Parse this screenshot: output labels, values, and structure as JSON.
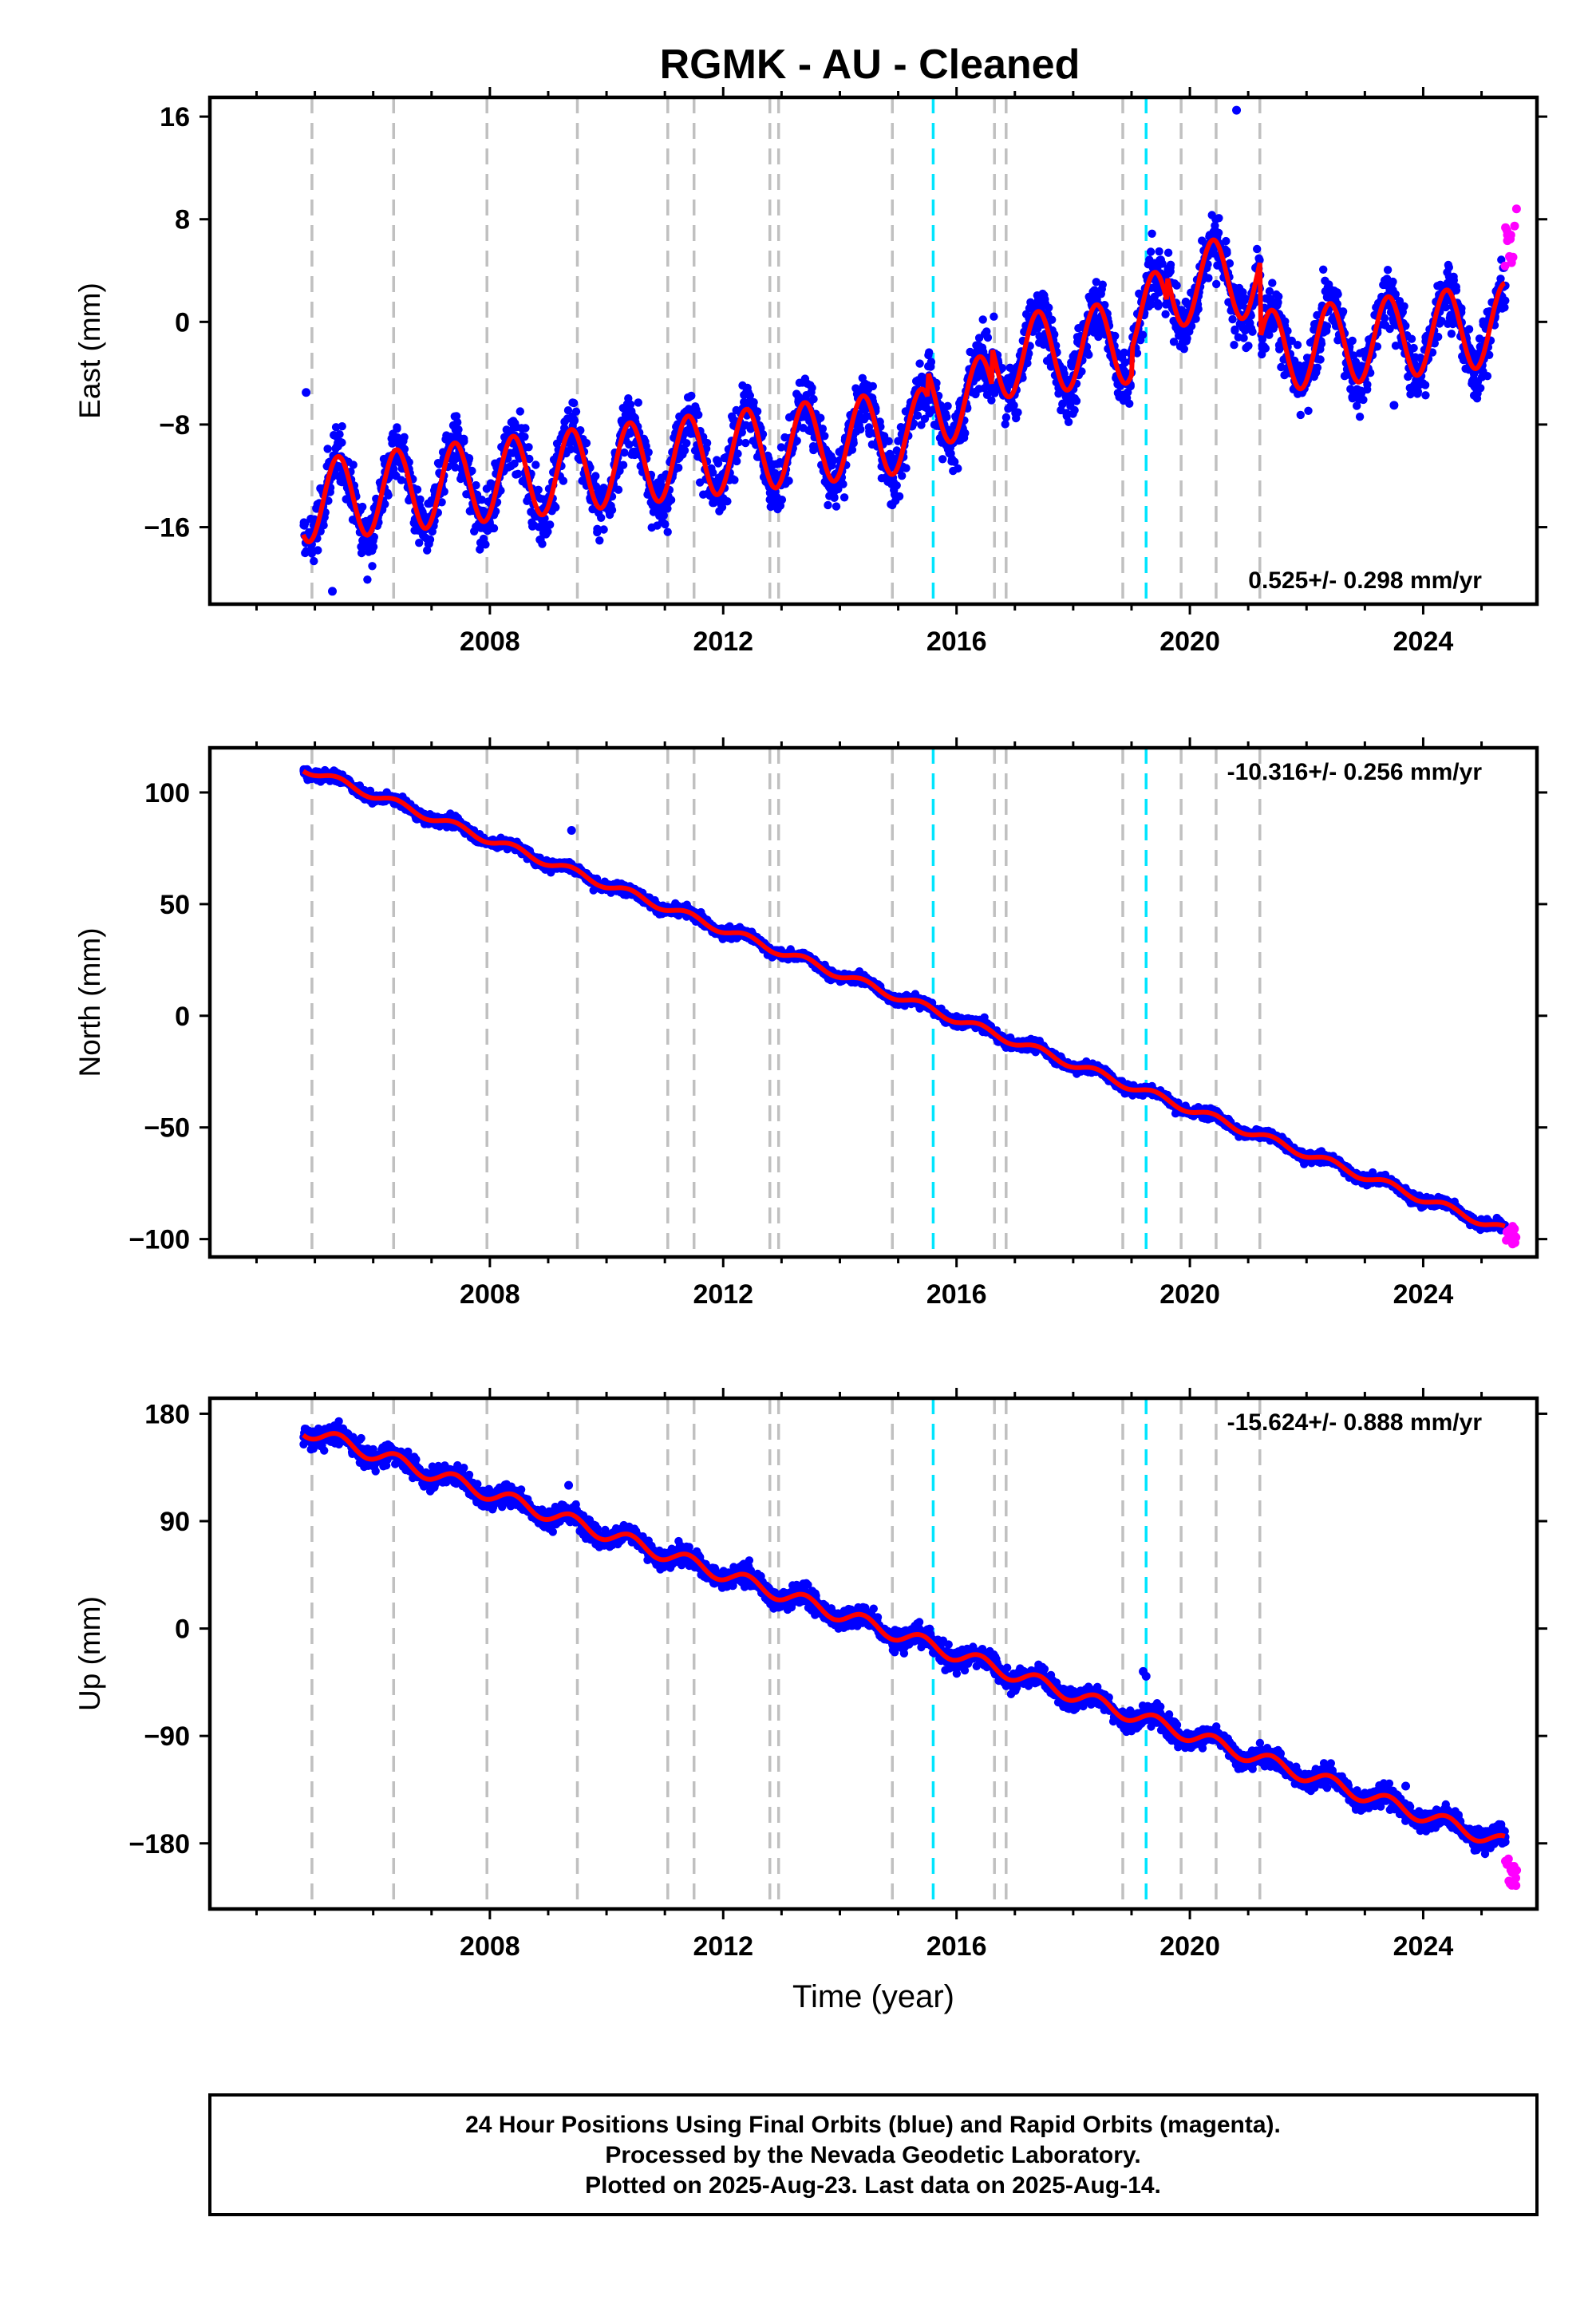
{
  "title": "RGMK  - AU - Cleaned",
  "colors": {
    "final_orbits": "#0000ff",
    "rapid_orbits": "#ff00ff",
    "model": "#ff0000",
    "event_gray": "#c0c0c0",
    "event_cyan": "#00e5ff",
    "frame": "#000000"
  },
  "footer": {
    "line1": "24 Hour Positions Using Final Orbits (blue) and Rapid Orbits (magenta).",
    "line2": "Processed by the Nevada Geodetic Laboratory.",
    "line3": "Plotted on 2025-Aug-23. Last data on 2025-Aug-14."
  },
  "chart_data": [
    {
      "type": "scatter",
      "name": "east",
      "ylabel": "East (mm)",
      "xlabel": "",
      "rate_label": "0.525+/- 0.298 mm/yr",
      "rate_position": "bottom-right",
      "xlim": [
        2003.2,
        2025.95
      ],
      "ylim": [
        -22,
        17.5
      ],
      "x_ticks": [
        2008,
        2012,
        2016,
        2020,
        2024
      ],
      "y_ticks": [
        -16,
        -8,
        0,
        8,
        16
      ],
      "y_tick_labels": [
        "−16",
        "−8",
        "0",
        "8",
        "16"
      ],
      "series": [
        {
          "role": "daily_final",
          "x_range": [
            2004.8,
            2025.4
          ],
          "trend": {
            "start": -14.0,
            "rate_mm_yr": 0.525,
            "extra": [
              [
                2015.5,
                2.0
              ],
              [
                2016.6,
                3.0
              ],
              [
                2019.0,
                2.0
              ],
              [
                2019.6,
                2.0
              ],
              [
                2021.2,
                -6.0
              ]
            ]
          },
          "annual_amplitude": 3.2,
          "scatter_sd": 1.6,
          "outliers": [
            [
              2005.3,
              -21
            ],
            [
              2004.85,
              -5.5
            ],
            [
              2020.8,
              16.5
            ],
            [
              2023.5,
              -6.5
            ]
          ]
        },
        {
          "role": "daily_rapid",
          "x_range": [
            2025.4,
            2025.62
          ],
          "values_approx": [
            4,
            9
          ]
        }
      ],
      "events_gray": [
        2004.95,
        2006.35,
        2007.95,
        2009.5,
        2011.05,
        2011.5,
        2012.8,
        2012.95,
        2014.9,
        2016.65,
        2016.85,
        2018.85,
        2019.85,
        2020.45,
        2021.2
      ],
      "events_cyan": [
        2015.6,
        2019.25
      ]
    },
    {
      "type": "scatter",
      "name": "north",
      "ylabel": "North (mm)",
      "xlabel": "",
      "rate_label": "-10.316+/- 0.256 mm/yr",
      "rate_position": "top-right",
      "xlim": [
        2003.2,
        2025.95
      ],
      "ylim": [
        -108,
        120
      ],
      "x_ticks": [
        2008,
        2012,
        2016,
        2020,
        2024
      ],
      "y_ticks": [
        -100,
        -50,
        0,
        50,
        100
      ],
      "y_tick_labels": [
        "−100",
        "−50",
        "0",
        "50",
        "100"
      ],
      "series": [
        {
          "role": "daily_final",
          "x_range": [
            2004.8,
            2025.4
          ],
          "trend": {
            "start": 111.0,
            "end": -96.0
          },
          "annual_amplitude": 1.8,
          "scatter_sd": 1.6,
          "outliers": [
            [
              2009.4,
              83
            ]
          ]
        },
        {
          "role": "daily_rapid",
          "x_range": [
            2025.4,
            2025.62
          ],
          "values_approx": [
            -103,
            -93
          ]
        }
      ],
      "events_gray": [
        2004.95,
        2006.35,
        2007.95,
        2009.5,
        2011.05,
        2011.5,
        2012.8,
        2012.95,
        2014.9,
        2016.65,
        2016.85,
        2018.85,
        2019.85,
        2020.45,
        2021.2
      ],
      "events_cyan": [
        2015.6,
        2019.25
      ]
    },
    {
      "type": "scatter",
      "name": "up",
      "ylabel": "Up (mm)",
      "xlabel": "Time (year)",
      "rate_label": "-15.624+/- 0.888 mm/yr",
      "rate_position": "top-right",
      "xlim": [
        2003.2,
        2025.95
      ],
      "ylim": [
        -235,
        193
      ],
      "x_ticks": [
        2008,
        2012,
        2016,
        2020,
        2024
      ],
      "y_ticks": [
        -180,
        -90,
        0,
        90,
        180
      ],
      "y_tick_labels": [
        "−180",
        "−90",
        "0",
        "90",
        "180"
      ],
      "series": [
        {
          "role": "daily_final",
          "x_range": [
            2004.8,
            2025.4
          ],
          "trend": {
            "start": 167.0,
            "end": -180.0
          },
          "annual_amplitude": 6.0,
          "scatter_sd": 6.0,
          "outliers": [
            [
              2009.35,
              120
            ],
            [
              2019.2,
              -36
            ],
            [
              2019.25,
              -40
            ],
            [
              2023.7,
              -132
            ]
          ]
        },
        {
          "role": "daily_rapid",
          "x_range": [
            2025.4,
            2025.62
          ],
          "values_approx": [
            -225,
            -190
          ]
        }
      ],
      "events_gray": [
        2004.95,
        2006.35,
        2007.95,
        2009.5,
        2011.05,
        2011.5,
        2012.8,
        2012.95,
        2014.9,
        2016.65,
        2016.85,
        2018.85,
        2019.85,
        2020.45,
        2021.2
      ],
      "events_cyan": [
        2015.6,
        2019.25
      ]
    }
  ]
}
